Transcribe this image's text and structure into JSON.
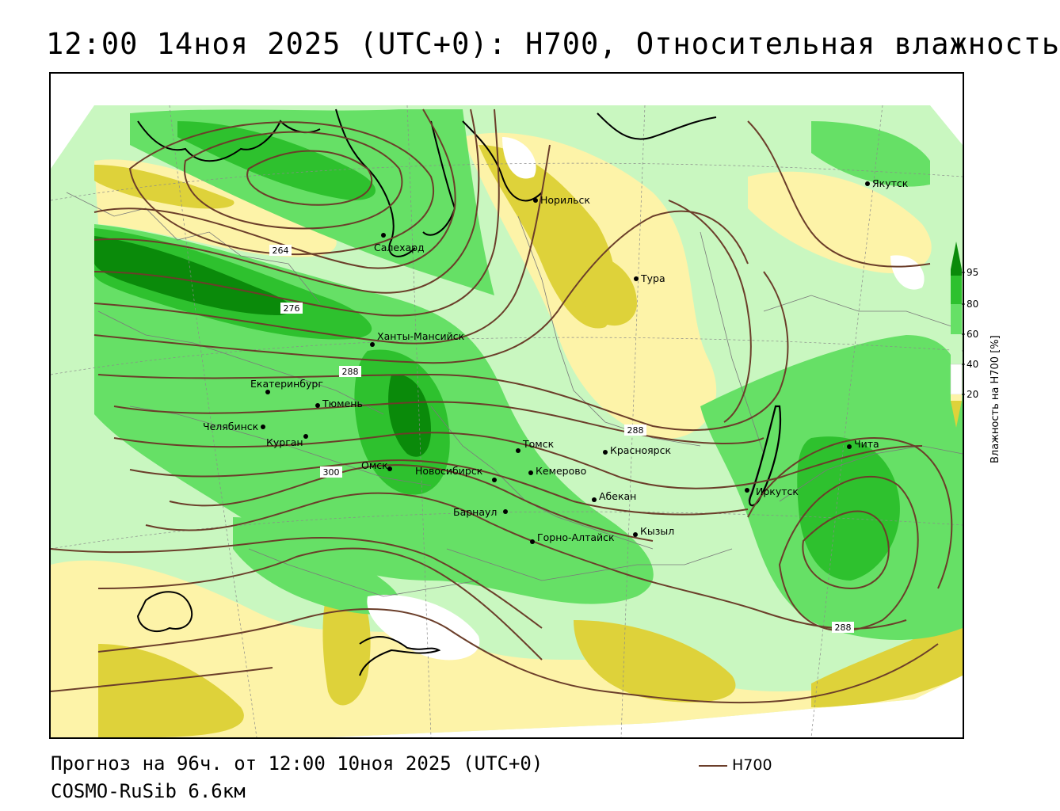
{
  "title": "12:00 14ноя 2025 (UTC+0): H700, Относительная влажность",
  "footer": {
    "forecast": "Прогноз на 96ч. от 12:00 10ноя 2025 (UTC+0)",
    "model": "COSMO-RuSib 6.6км"
  },
  "line_legend": {
    "label": "H700",
    "color": "#6b3e2a"
  },
  "colorbar": {
    "title": "Влажность на H700 [%]",
    "ticks": [
      "95",
      "80",
      "60",
      "40",
      "20"
    ],
    "colors": {
      "very_high": "#0a8a0a",
      "high": "#2ec12e",
      "mid_high": "#66e066",
      "mid": "#c9f7c0",
      "neutral": "#ffffff",
      "low": "#fdf3a8",
      "very_low": "#ded23a"
    }
  },
  "contour_labels": [
    "264",
    "276",
    "288",
    "300",
    "288",
    "288"
  ],
  "cities": [
    {
      "name": "Норильск"
    },
    {
      "name": "Якутск"
    },
    {
      "name": "Салехард"
    },
    {
      "name": "Тура"
    },
    {
      "name": "Ханты-Мансийск"
    },
    {
      "name": "Екатеринбург"
    },
    {
      "name": "Тюмень"
    },
    {
      "name": "Челябинск"
    },
    {
      "name": "Курган"
    },
    {
      "name": "Омск"
    },
    {
      "name": "Томск"
    },
    {
      "name": "Красноярск"
    },
    {
      "name": "Новосибирск"
    },
    {
      "name": "Кемерово"
    },
    {
      "name": "Абекан"
    },
    {
      "name": "Барнаул"
    },
    {
      "name": "Иркутск"
    },
    {
      "name": "Чита"
    },
    {
      "name": "Кызыл"
    },
    {
      "name": "Горно-Алтайск"
    }
  ]
}
